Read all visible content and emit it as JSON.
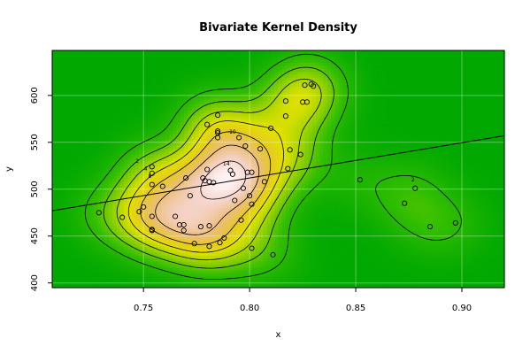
{
  "chart_data": {
    "type": "scatter",
    "title": "Bivariate Kernel Density",
    "xlabel": "x",
    "ylabel": "y",
    "xlim": [
      0.707,
      0.92
    ],
    "ylim": [
      395,
      648
    ],
    "x_ticks": [
      0.75,
      0.8,
      0.85,
      0.9
    ],
    "x_tick_labels": [
      "0.75",
      "0.80",
      "0.85",
      "0.90"
    ],
    "y_ticks": [
      400,
      450,
      500,
      550,
      600
    ],
    "y_tick_labels": [
      "400",
      "450",
      "500",
      "550",
      "600"
    ],
    "grid": true,
    "background": "density heatmap with contour lines",
    "colors": {
      "low_density": "#00a800",
      "mid_density": "#e8e800",
      "high_density": "#fff4f4",
      "contour": "#000000",
      "points": "#000000"
    },
    "contour_levels": [
      2,
      4,
      6,
      8,
      10,
      12,
      14
    ],
    "contour_labels": [
      {
        "text": "2",
        "x": 0.747,
        "y": 530
      },
      {
        "text": "4",
        "x": 0.751,
        "y": 522
      },
      {
        "text": "6",
        "x": 0.753,
        "y": 514
      },
      {
        "text": "10",
        "x": 0.792,
        "y": 561
      },
      {
        "text": "14",
        "x": 0.789,
        "y": 527
      },
      {
        "text": "2",
        "x": 0.877,
        "y": 510
      }
    ],
    "points": [
      {
        "x": 0.729,
        "y": 475
      },
      {
        "x": 0.74,
        "y": 470
      },
      {
        "x": 0.748,
        "y": 476
      },
      {
        "x": 0.75,
        "y": 481
      },
      {
        "x": 0.754,
        "y": 524
      },
      {
        "x": 0.754,
        "y": 517
      },
      {
        "x": 0.754,
        "y": 505
      },
      {
        "x": 0.754,
        "y": 471
      },
      {
        "x": 0.754,
        "y": 457
      },
      {
        "x": 0.754,
        "y": 456
      },
      {
        "x": 0.759,
        "y": 503
      },
      {
        "x": 0.765,
        "y": 471
      },
      {
        "x": 0.767,
        "y": 462
      },
      {
        "x": 0.769,
        "y": 462
      },
      {
        "x": 0.769,
        "y": 456
      },
      {
        "x": 0.77,
        "y": 512
      },
      {
        "x": 0.772,
        "y": 493
      },
      {
        "x": 0.774,
        "y": 442
      },
      {
        "x": 0.777,
        "y": 460
      },
      {
        "x": 0.778,
        "y": 512
      },
      {
        "x": 0.779,
        "y": 509
      },
      {
        "x": 0.78,
        "y": 569
      },
      {
        "x": 0.78,
        "y": 521
      },
      {
        "x": 0.781,
        "y": 508
      },
      {
        "x": 0.781,
        "y": 439
      },
      {
        "x": 0.781,
        "y": 461
      },
      {
        "x": 0.783,
        "y": 507
      },
      {
        "x": 0.785,
        "y": 579
      },
      {
        "x": 0.785,
        "y": 562
      },
      {
        "x": 0.785,
        "y": 560
      },
      {
        "x": 0.785,
        "y": 555
      },
      {
        "x": 0.786,
        "y": 443
      },
      {
        "x": 0.788,
        "y": 448
      },
      {
        "x": 0.791,
        "y": 520
      },
      {
        "x": 0.792,
        "y": 516
      },
      {
        "x": 0.793,
        "y": 488
      },
      {
        "x": 0.795,
        "y": 555
      },
      {
        "x": 0.796,
        "y": 467
      },
      {
        "x": 0.797,
        "y": 501
      },
      {
        "x": 0.798,
        "y": 546
      },
      {
        "x": 0.799,
        "y": 518
      },
      {
        "x": 0.8,
        "y": 493
      },
      {
        "x": 0.801,
        "y": 518
      },
      {
        "x": 0.801,
        "y": 484
      },
      {
        "x": 0.801,
        "y": 437
      },
      {
        "x": 0.805,
        "y": 543
      },
      {
        "x": 0.807,
        "y": 508
      },
      {
        "x": 0.81,
        "y": 565
      },
      {
        "x": 0.811,
        "y": 430
      },
      {
        "x": 0.817,
        "y": 594
      },
      {
        "x": 0.817,
        "y": 578
      },
      {
        "x": 0.818,
        "y": 522
      },
      {
        "x": 0.819,
        "y": 542
      },
      {
        "x": 0.824,
        "y": 537
      },
      {
        "x": 0.825,
        "y": 593
      },
      {
        "x": 0.826,
        "y": 611
      },
      {
        "x": 0.827,
        "y": 593
      },
      {
        "x": 0.829,
        "y": 612
      },
      {
        "x": 0.83,
        "y": 610
      },
      {
        "x": 0.852,
        "y": 510
      },
      {
        "x": 0.873,
        "y": 485
      },
      {
        "x": 0.878,
        "y": 501
      },
      {
        "x": 0.885,
        "y": 460
      },
      {
        "x": 0.897,
        "y": 464
      }
    ],
    "regression_line": {
      "x": [
        0.707,
        0.92
      ],
      "y": [
        477,
        557
      ]
    }
  }
}
